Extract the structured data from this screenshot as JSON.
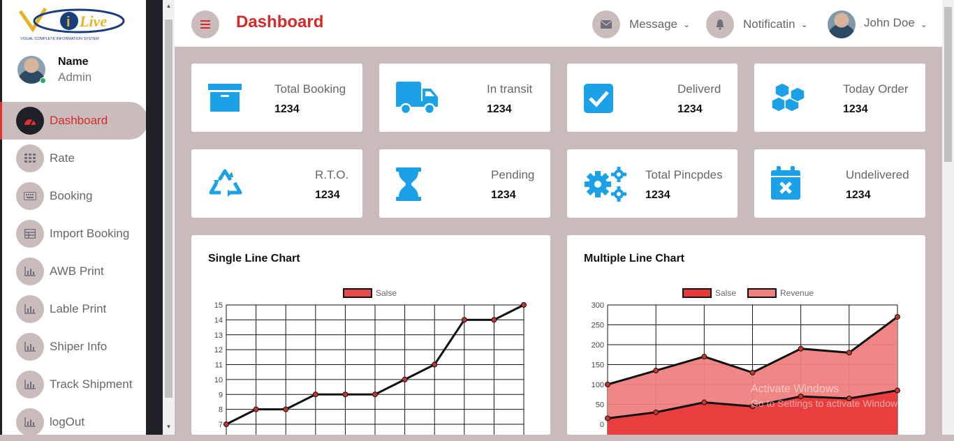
{
  "brand": {
    "logo_text": "iLive",
    "logo_tagline": "VISUAL COMPLETE INFORMATION SYSTEM"
  },
  "profile": {
    "name": "Name",
    "role": "Admin"
  },
  "sidebar": {
    "items": [
      {
        "label": "Dashboard",
        "icon": "speedometer-icon",
        "active": true
      },
      {
        "label": "Rate",
        "icon": "grid-icon"
      },
      {
        "label": "Booking",
        "icon": "keyboard-icon"
      },
      {
        "label": "Import Booking",
        "icon": "table-icon"
      },
      {
        "label": "AWB Print",
        "icon": "bar-chart-icon"
      },
      {
        "label": "Lable Print",
        "icon": "bar-chart-icon"
      },
      {
        "label": "Shiper Info",
        "icon": "bar-chart-icon"
      },
      {
        "label": "Track Shipment",
        "icon": "bar-chart-icon"
      },
      {
        "label": "logOut",
        "icon": "bar-chart-icon"
      }
    ]
  },
  "header": {
    "title": "Dashboard",
    "message_label": "Message",
    "notification_label": "Notificatin",
    "user_label": "John Doe"
  },
  "stats": [
    {
      "label": "Total Booking",
      "value": "1234",
      "icon": "archive-icon"
    },
    {
      "label": "In transit",
      "value": "1234",
      "icon": "truck-icon"
    },
    {
      "label": "Deliverd",
      "value": "1234",
      "icon": "checkbox-icon"
    },
    {
      "label": "Today Order",
      "value": "1234",
      "icon": "cubes-icon"
    },
    {
      "label": "R.T.O.",
      "value": "1234",
      "icon": "recycle-icon"
    },
    {
      "label": "Pending",
      "value": "1234",
      "icon": "hourglass-icon"
    },
    {
      "label": "Total Pincpdes",
      "value": "1234",
      "icon": "gears-icon"
    },
    {
      "label": "Undelivered",
      "value": "1234",
      "icon": "calendar-x-icon"
    }
  ],
  "colors": {
    "accent": "#d42a2a",
    "icon_blue": "#1ba1e8",
    "background": "#c9bbbb",
    "sidebar_dark": "#1f2126"
  },
  "chart_data": [
    {
      "type": "line",
      "title": "Single Line Chart",
      "series": [
        {
          "name": "Salse",
          "values": [
            7,
            8,
            8,
            9,
            9,
            9,
            10,
            11,
            14,
            14,
            15
          ],
          "color": "#e74c4c"
        }
      ],
      "ylim": [
        7,
        15
      ],
      "yticks": [
        7,
        8,
        9,
        10,
        11,
        12,
        13,
        14,
        15
      ],
      "grid": true,
      "legend": "top"
    },
    {
      "type": "area",
      "title": "Multiple Line Chart",
      "series": [
        {
          "name": "Salse",
          "values": [
            15,
            30,
            55,
            45,
            70,
            65,
            85
          ],
          "color": "#e83a3a"
        },
        {
          "name": "Revenue",
          "values": [
            100,
            135,
            170,
            130,
            190,
            180,
            270
          ],
          "color": "#f08080"
        }
      ],
      "ylim": [
        0,
        300
      ],
      "yticks": [
        0,
        50,
        100,
        150,
        200,
        250,
        300
      ],
      "grid": true,
      "legend": "top"
    }
  ],
  "watermark": {
    "line1": "Activate Windows",
    "line2": "Go to Settings to activate Windows."
  }
}
